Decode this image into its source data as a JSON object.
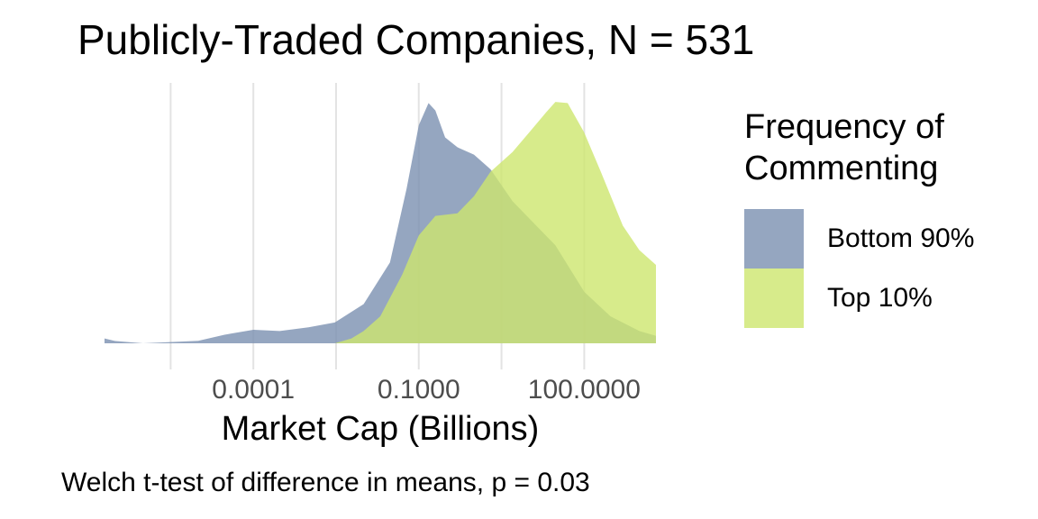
{
  "chart_data": {
    "type": "area",
    "title": "Publicly-Traded Companies, N = 531",
    "xlabel": "Market Cap (Billions)",
    "ylabel": "",
    "caption": "Welch t-test of difference in means, p = 0.03",
    "x_scale": "log10",
    "xlim": [
      2e-07,
      2000
    ],
    "x_ticks": [
      0.0001,
      0.1,
      100
    ],
    "x_tick_labels": [
      "0.0001",
      "0.1000",
      "100.0000"
    ],
    "grid": "vertical major and minor lines",
    "legend": {
      "title": "Frequency of\nCommenting",
      "placement": "right"
    },
    "series": [
      {
        "name": "Bottom 90%",
        "color": "#7a90b0",
        "x": [
          2e-07,
          3e-07,
          1e-06,
          1e-05,
          3e-05,
          0.0001,
          0.0003,
          0.001,
          0.003,
          0.01,
          0.03,
          0.06,
          0.1,
          0.15,
          0.2,
          0.3,
          0.5,
          1,
          2,
          5,
          10,
          30,
          100,
          300,
          1000,
          2000
        ],
        "y": [
          0.02,
          0.01,
          0.0,
          0.01,
          0.035,
          0.055,
          0.05,
          0.065,
          0.085,
          0.16,
          0.33,
          0.63,
          0.89,
          0.98,
          0.95,
          0.84,
          0.8,
          0.77,
          0.71,
          0.58,
          0.51,
          0.4,
          0.21,
          0.11,
          0.05,
          0.03
        ]
      },
      {
        "name": "Top 10%",
        "color": "#cde66e",
        "x": [
          0.003,
          0.006,
          0.01,
          0.02,
          0.05,
          0.1,
          0.2,
          0.5,
          1,
          2,
          5,
          10,
          20,
          30,
          50,
          100,
          200,
          500,
          1000,
          2000
        ],
        "y": [
          0.0,
          0.02,
          0.05,
          0.11,
          0.28,
          0.44,
          0.52,
          0.53,
          0.6,
          0.7,
          0.78,
          0.86,
          0.94,
          0.985,
          0.98,
          0.86,
          0.7,
          0.48,
          0.38,
          0.32
        ]
      }
    ]
  }
}
